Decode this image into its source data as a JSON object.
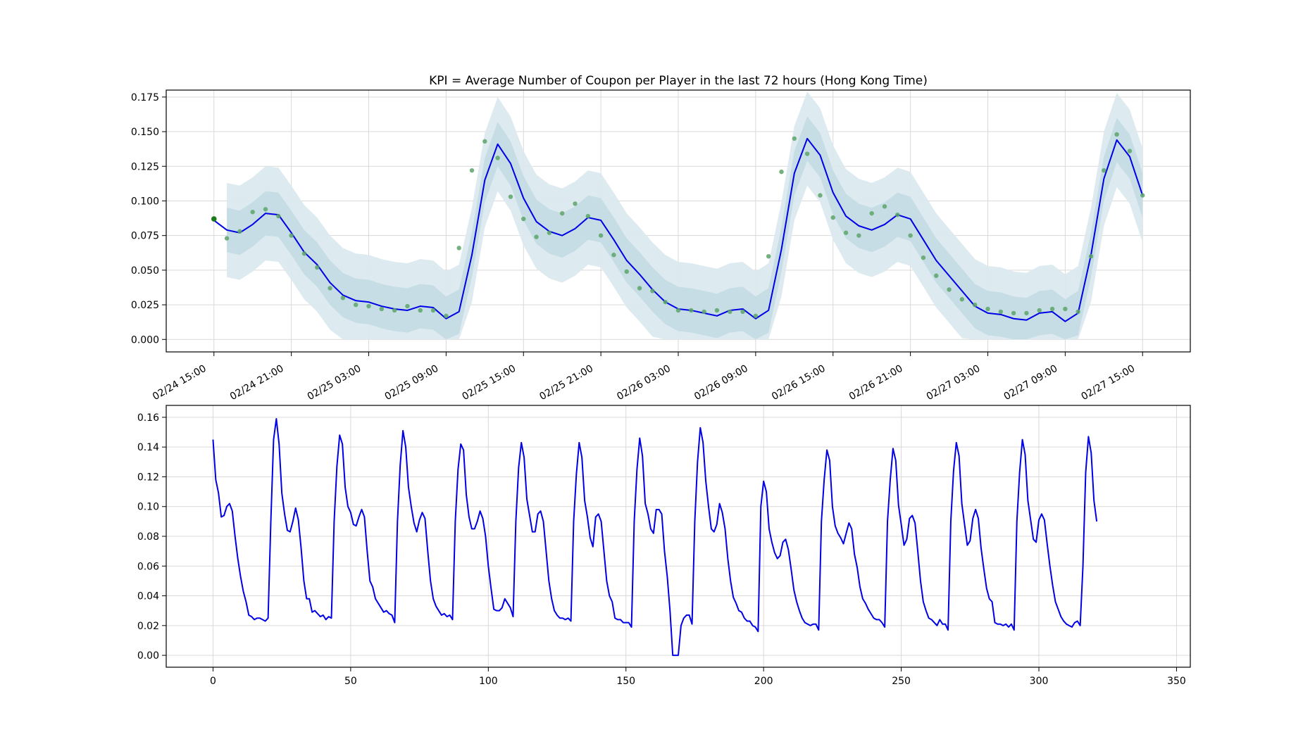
{
  "colors": {
    "line": "#0000e6",
    "points": "#5aa469",
    "first_point": "#1a7a1a",
    "band_outer": "#dbe9ee",
    "band_inner": "#c4dce4",
    "grid": "#d9d9d9",
    "frame": "#000000"
  },
  "chart_data": [
    {
      "type": "line",
      "title": "KPI = Average Number of Coupon per Player in the last 72 hours (Hong Kong Time)",
      "xlabel": "",
      "ylabel": "",
      "x_unit": "hours from 02/24 15:00",
      "x_tick_positions": [
        0,
        6,
        12,
        18,
        24,
        30,
        36,
        42,
        48,
        54,
        60,
        66,
        72
      ],
      "x_tick_labels": [
        "02/24 15:00",
        "02/24 21:00",
        "02/25 03:00",
        "02/25 09:00",
        "02/25 15:00",
        "02/25 21:00",
        "02/26 03:00",
        "02/26 09:00",
        "02/26 15:00",
        "02/26 21:00",
        "02/27 03:00",
        "02/27 09:00",
        "02/27 15:00"
      ],
      "xlim": [
        -3.7,
        75.7
      ],
      "ylim": [
        -0.009,
        0.18
      ],
      "y_ticks": [
        0.0,
        0.025,
        0.05,
        0.075,
        0.1,
        0.125,
        0.15,
        0.175
      ],
      "y_tick_labels": [
        "0.000",
        "0.025",
        "0.050",
        "0.075",
        "0.100",
        "0.125",
        "0.150",
        "0.175"
      ],
      "grid": true,
      "x": [
        0,
        1,
        2,
        3,
        4,
        5,
        6,
        7,
        8,
        9,
        10,
        11,
        12,
        13,
        14,
        15,
        16,
        17,
        18,
        19,
        20,
        21,
        22,
        23,
        24,
        25,
        26,
        27,
        28,
        29,
        30,
        31,
        32,
        33,
        34,
        35,
        36,
        37,
        38,
        39,
        40,
        41,
        42,
        43,
        44,
        45,
        46,
        47,
        48,
        49,
        50,
        51,
        52,
        53,
        54,
        55,
        56,
        57,
        58,
        59,
        60,
        61,
        62,
        63,
        64,
        65,
        66,
        67,
        68,
        69,
        70,
        71,
        72
      ],
      "series": [
        {
          "kind": "forecast_line",
          "values": [
            0.086,
            0.079,
            0.077,
            0.083,
            0.091,
            0.09,
            0.077,
            0.063,
            0.054,
            0.041,
            0.032,
            0.028,
            0.027,
            0.024,
            0.022,
            0.021,
            0.024,
            0.023,
            0.015,
            0.02,
            0.061,
            0.115,
            0.141,
            0.127,
            0.102,
            0.085,
            0.078,
            0.075,
            0.08,
            0.088,
            0.086,
            0.072,
            0.057,
            0.047,
            0.036,
            0.027,
            0.022,
            0.021,
            0.019,
            0.017,
            0.021,
            0.022,
            0.015,
            0.021,
            0.065,
            0.12,
            0.145,
            0.133,
            0.106,
            0.089,
            0.082,
            0.079,
            0.083,
            0.09,
            0.087,
            0.072,
            0.057,
            0.046,
            0.035,
            0.024,
            0.019,
            0.018,
            0.015,
            0.014,
            0.019,
            0.02,
            0.013,
            0.019,
            0.061,
            0.116,
            0.144,
            0.132,
            0.104
          ]
        },
        {
          "kind": "observed_points",
          "x": [
            0,
            1,
            2,
            3,
            4,
            5,
            6,
            7,
            8,
            9,
            10,
            11,
            12,
            13,
            14,
            15,
            16,
            17,
            18,
            19,
            20,
            21,
            22,
            23,
            24,
            25,
            26,
            27,
            28,
            29,
            30,
            31,
            32,
            33,
            34,
            35,
            36,
            37,
            38,
            39,
            40,
            41,
            42,
            43,
            44,
            45,
            46,
            47,
            48,
            49,
            50,
            51,
            52,
            53,
            54,
            55,
            56,
            57,
            58,
            59,
            60,
            61,
            62,
            63,
            64,
            65,
            66,
            67,
            68,
            69,
            70,
            71,
            72
          ],
          "values": [
            0.087,
            0.073,
            0.078,
            0.092,
            0.094,
            0.089,
            0.075,
            0.062,
            0.052,
            0.037,
            0.03,
            0.025,
            0.024,
            0.022,
            0.021,
            0.024,
            0.021,
            0.021,
            0.017,
            0.066,
            0.122,
            0.143,
            0.131,
            0.103,
            0.087,
            0.074,
            0.077,
            0.091,
            0.098,
            0.089,
            0.075,
            0.061,
            0.049,
            0.037,
            0.035,
            0.027,
            0.021,
            0.021,
            0.02,
            0.021,
            0.02,
            0.02,
            0.017,
            0.06,
            0.121,
            0.145,
            0.134,
            0.104,
            0.088,
            0.077,
            0.075,
            0.091,
            0.096,
            0.09,
            0.075,
            0.059,
            0.046,
            0.036,
            0.029,
            0.025,
            0.022,
            0.02,
            0.019,
            0.019,
            0.021,
            0.022,
            0.022,
            0.02,
            0.06,
            0.122,
            0.148,
            0.136,
            0.104
          ]
        },
        {
          "kind": "band_inner_half_width",
          "value": 0.016
        },
        {
          "kind": "band_outer_half_width",
          "value": 0.034
        }
      ]
    },
    {
      "type": "line",
      "title": "",
      "xlabel": "",
      "ylabel": "",
      "xlim": [
        -17,
        355
      ],
      "ylim": [
        -0.008,
        0.168
      ],
      "x_ticks": [
        0,
        50,
        100,
        150,
        200,
        250,
        300,
        350
      ],
      "x_tick_labels": [
        "0",
        "50",
        "100",
        "150",
        "200",
        "250",
        "300",
        "350"
      ],
      "y_ticks": [
        0.0,
        0.02,
        0.04,
        0.06,
        0.08,
        0.1,
        0.12,
        0.14,
        0.16
      ],
      "y_tick_labels": [
        "0.00",
        "0.02",
        "0.04",
        "0.06",
        "0.08",
        "0.10",
        "0.12",
        "0.14",
        "0.16"
      ],
      "grid": true,
      "x_start": 0,
      "series": [
        {
          "values": [
            0.145,
            0.118,
            0.109,
            0.093,
            0.094,
            0.1,
            0.102,
            0.097,
            0.08,
            0.065,
            0.053,
            0.043,
            0.036,
            0.027,
            0.026,
            0.024,
            0.025,
            0.025,
            0.024,
            0.023,
            0.025,
            0.09,
            0.145,
            0.159,
            0.142,
            0.109,
            0.095,
            0.084,
            0.083,
            0.09,
            0.099,
            0.091,
            0.072,
            0.05,
            0.038,
            0.038,
            0.029,
            0.03,
            0.028,
            0.026,
            0.027,
            0.024,
            0.026,
            0.025,
            0.09,
            0.127,
            0.148,
            0.142,
            0.113,
            0.1,
            0.096,
            0.088,
            0.087,
            0.093,
            0.098,
            0.093,
            0.07,
            0.05,
            0.046,
            0.038,
            0.035,
            0.032,
            0.029,
            0.03,
            0.028,
            0.027,
            0.022,
            0.09,
            0.128,
            0.151,
            0.14,
            0.113,
            0.1,
            0.089,
            0.083,
            0.091,
            0.096,
            0.092,
            0.07,
            0.05,
            0.038,
            0.033,
            0.03,
            0.027,
            0.028,
            0.026,
            0.027,
            0.024,
            0.09,
            0.125,
            0.142,
            0.138,
            0.108,
            0.093,
            0.085,
            0.085,
            0.09,
            0.097,
            0.092,
            0.08,
            0.06,
            0.045,
            0.031,
            0.03,
            0.03,
            0.032,
            0.038,
            0.035,
            0.032,
            0.026,
            0.09,
            0.126,
            0.143,
            0.133,
            0.105,
            0.094,
            0.083,
            0.083,
            0.095,
            0.097,
            0.09,
            0.07,
            0.05,
            0.038,
            0.03,
            0.027,
            0.025,
            0.025,
            0.024,
            0.025,
            0.023,
            0.09,
            0.122,
            0.143,
            0.133,
            0.104,
            0.093,
            0.079,
            0.073,
            0.093,
            0.095,
            0.09,
            0.07,
            0.05,
            0.04,
            0.036,
            0.025,
            0.024,
            0.024,
            0.022,
            0.022,
            0.022,
            0.019,
            0.09,
            0.125,
            0.146,
            0.134,
            0.102,
            0.095,
            0.085,
            0.082,
            0.098,
            0.098,
            0.095,
            0.07,
            0.053,
            0.03,
            0.0,
            0.0,
            0.0,
            0.02,
            0.025,
            0.027,
            0.027,
            0.021,
            0.09,
            0.13,
            0.153,
            0.143,
            0.117,
            0.1,
            0.085,
            0.083,
            0.088,
            0.102,
            0.096,
            0.085,
            0.065,
            0.05,
            0.039,
            0.035,
            0.03,
            0.029,
            0.025,
            0.023,
            0.023,
            0.02,
            0.019,
            0.016,
            0.1,
            0.117,
            0.11,
            0.085,
            0.076,
            0.069,
            0.065,
            0.067,
            0.076,
            0.078,
            0.071,
            0.058,
            0.044,
            0.036,
            0.03,
            0.025,
            0.022,
            0.021,
            0.02,
            0.021,
            0.021,
            0.017,
            0.09,
            0.118,
            0.138,
            0.131,
            0.1,
            0.087,
            0.082,
            0.079,
            0.075,
            0.082,
            0.089,
            0.085,
            0.068,
            0.059,
            0.046,
            0.038,
            0.035,
            0.031,
            0.028,
            0.025,
            0.024,
            0.024,
            0.022,
            0.019,
            0.09,
            0.118,
            0.139,
            0.131,
            0.101,
            0.088,
            0.074,
            0.078,
            0.092,
            0.094,
            0.089,
            0.07,
            0.05,
            0.036,
            0.03,
            0.025,
            0.024,
            0.022,
            0.02,
            0.024,
            0.021,
            0.021,
            0.017,
            0.09,
            0.124,
            0.143,
            0.134,
            0.102,
            0.088,
            0.074,
            0.077,
            0.092,
            0.098,
            0.092,
            0.072,
            0.058,
            0.045,
            0.038,
            0.036,
            0.022,
            0.021,
            0.021,
            0.02,
            0.021,
            0.019,
            0.021,
            0.017,
            0.09,
            0.123,
            0.145,
            0.135,
            0.104,
            0.091,
            0.078,
            0.076,
            0.091,
            0.095,
            0.091,
            0.075,
            0.06,
            0.047,
            0.036,
            0.031,
            0.026,
            0.023,
            0.021,
            0.02,
            0.019,
            0.022,
            0.023,
            0.02,
            0.06,
            0.123,
            0.147,
            0.136,
            0.104,
            0.09
          ]
        }
      ]
    }
  ]
}
